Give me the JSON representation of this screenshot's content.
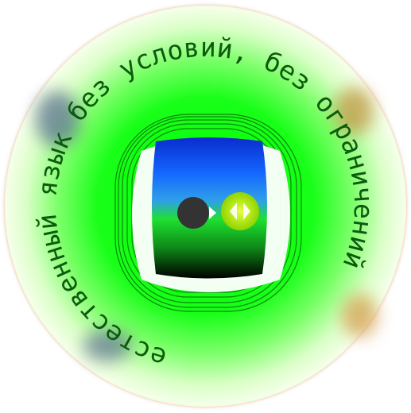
{
  "emblem": {
    "ring_text": "естественный язык без условий, без ограничений",
    "colors": {
      "ring_outer": "#e0741a",
      "ring_green": "#00ff00",
      "screen_top": "#0033ff",
      "screen_mid": "#18e024",
      "screen_bottom": "#000000",
      "dot_dark": "#333333",
      "dot_light": "#a8e000",
      "text": "#0d5a0d"
    }
  }
}
